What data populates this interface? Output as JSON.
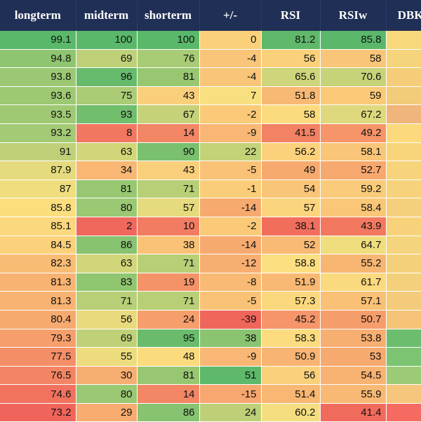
{
  "colors": {
    "header_bg": "#1f2f55",
    "header_text": "#ffffff",
    "scale_low": "#f0635a",
    "scale_mid": "#fce080",
    "scale_high": "#5ab86a"
  },
  "table": {
    "headers": [
      "longterm",
      "midterm",
      "shorterm",
      "+/-",
      "RSI",
      "RSIw",
      "DBK"
    ],
    "rows": [
      [
        "99.1",
        "100",
        "100",
        "0",
        "81.2",
        "85.8",
        ""
      ],
      [
        "94.8",
        "69",
        "76",
        "-4",
        "56",
        "58",
        ""
      ],
      [
        "93.8",
        "96",
        "81",
        "-4",
        "65.6",
        "70.6",
        ""
      ],
      [
        "93.6",
        "75",
        "43",
        "7",
        "51.8",
        "59",
        ""
      ],
      [
        "93.5",
        "93",
        "67",
        "-2",
        "58",
        "67.2",
        ""
      ],
      [
        "93.2",
        "8",
        "14",
        "-9",
        "41.5",
        "49.2",
        ""
      ],
      [
        "91",
        "63",
        "90",
        "22",
        "56.2",
        "58.1",
        ""
      ],
      [
        "87.9",
        "34",
        "43",
        "-5",
        "49",
        "52.7",
        ""
      ],
      [
        "87",
        "81",
        "71",
        "-1",
        "54",
        "59.2",
        ""
      ],
      [
        "85.8",
        "80",
        "57",
        "-14",
        "57",
        "58.4",
        ""
      ],
      [
        "85.1",
        "2",
        "10",
        "-2",
        "38.1",
        "43.9",
        ""
      ],
      [
        "84.5",
        "86",
        "38",
        "-14",
        "52",
        "64.7",
        ""
      ],
      [
        "82.3",
        "63",
        "71",
        "-12",
        "58.8",
        "55.2",
        ""
      ],
      [
        "81.3",
        "83",
        "19",
        "-8",
        "51.9",
        "61.7",
        ""
      ],
      [
        "81.3",
        "71",
        "71",
        "-5",
        "57.3",
        "57.1",
        ""
      ],
      [
        "80.4",
        "56",
        "24",
        "-39",
        "45.2",
        "50.7",
        ""
      ],
      [
        "79.3",
        "69",
        "95",
        "38",
        "58.3",
        "53.8",
        ""
      ],
      [
        "77.5",
        "55",
        "48",
        "-9",
        "50.9",
        "53",
        ""
      ],
      [
        "76.5",
        "30",
        "81",
        "51",
        "56",
        "54.5",
        ""
      ],
      [
        "74.6",
        "80",
        "14",
        "-15",
        "51.4",
        "55.9",
        ""
      ],
      [
        "73.2",
        "29",
        "86",
        "24",
        "60.2",
        "41.4",
        ""
      ]
    ],
    "dbk_colors": [
      "#f7d87a",
      "#f6d47c",
      "#f5cd78",
      "#f3cc7a",
      "#f0b57a",
      "#fcd97c",
      "#f8d47a",
      "#f7d47c",
      "#f6d27b",
      "#f5d07c",
      "#f7d27b",
      "#f4d47c",
      "#f5d07b",
      "#f4d07c",
      "#f3cb7a",
      "#f5c478",
      "#6dbd6f",
      "#7cc472",
      "#9ccb76",
      "#f5c67b",
      "#f56b62"
    ]
  }
}
